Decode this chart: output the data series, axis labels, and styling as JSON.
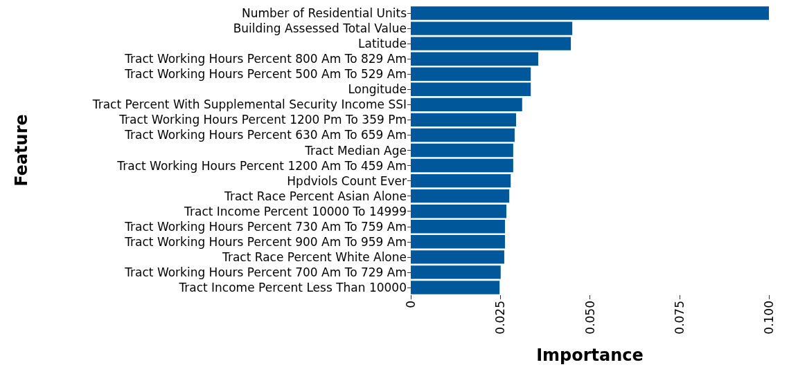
{
  "chart_data": {
    "type": "bar",
    "orientation": "horizontal",
    "xlabel": "Importance",
    "ylabel": "Feature",
    "categories": [
      "Number of Residential Units",
      "Building Assessed Total Value",
      "Latitude",
      "Tract Working Hours Percent 800 Am To 829 Am",
      "Tract Working Hours Percent 500 Am To 529 Am",
      "Longitude",
      "Tract Percent With Supplemental Security Income SSI",
      "Tract Working Hours Percent 1200 Pm To 359 Pm",
      "Tract Working Hours Percent 630 Am To 659 Am",
      "Tract Median Age",
      "Tract Working Hours Percent 1200 Am To 459 Am",
      "Hpdviols Count Ever",
      "Tract Race Percent Asian Alone",
      "Tract Income Percent 10000 To 14999",
      "Tract Working Hours Percent 730 Am To 759 Am",
      "Tract Working Hours Percent 900 Am To 959 Am",
      "Tract Race Percent White Alone",
      "Tract Working Hours Percent 700 Am To 729 Am",
      "Tract Income Percent Less Than 10000"
    ],
    "values": [
      0.1,
      0.0451,
      0.0447,
      0.0356,
      0.0335,
      0.0335,
      0.0311,
      0.0294,
      0.029,
      0.0286,
      0.0286,
      0.0279,
      0.0275,
      0.0267,
      0.0263,
      0.0263,
      0.0261,
      0.0251,
      0.0248
    ],
    "color": "#00589a",
    "xlim": [
      0,
      0.1
    ],
    "xticks": [
      0,
      {
        "value": 0.025,
        "label": "0.025"
      },
      {
        "value": 0.05,
        "label": "0.050"
      },
      {
        "value": 0.075,
        "label": "0.075"
      },
      {
        "value": 0.1,
        "label": "0.100"
      }
    ],
    "grid": false
  }
}
